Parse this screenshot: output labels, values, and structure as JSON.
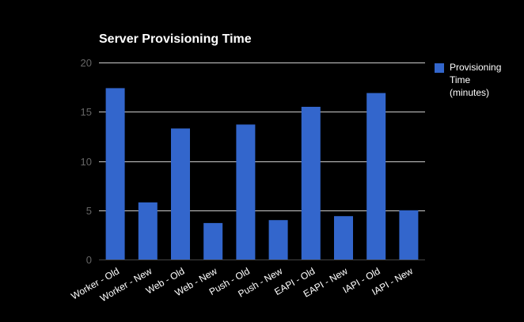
{
  "chart_data": {
    "type": "bar",
    "title": "Server Provisioning Time",
    "categories": [
      "Worker - Old",
      "Worker - New",
      "Web - Old",
      "Web - New",
      "Push - Old",
      "Push - New",
      "EAPI - Old",
      "EAPI - New",
      "IAPI - Old",
      "IAPI - New"
    ],
    "series": [
      {
        "name": "Provisioning Time (minutes)",
        "name_lines": [
          "Provisioning",
          "Time",
          "(minutes)"
        ],
        "values": [
          17.4,
          5.8,
          13.3,
          3.7,
          13.7,
          4.0,
          15.5,
          4.4,
          16.9,
          5.0
        ],
        "color": "#3366cc"
      }
    ],
    "ylim": [
      0,
      20
    ],
    "yticks": [
      "0",
      "5",
      "10",
      "15",
      "20"
    ],
    "xlabel": "",
    "ylabel": "",
    "grid": true,
    "legend_position": "right",
    "background_color": "#000000",
    "gridline_color": "#cccccc",
    "ytick_color": "#666666",
    "text_color": "#ffffff"
  }
}
